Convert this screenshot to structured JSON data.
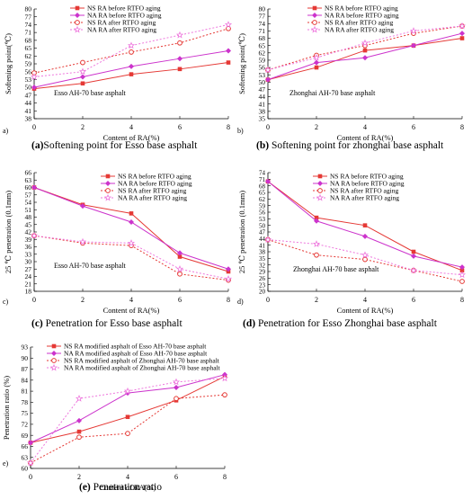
{
  "colors": {
    "red": "#e53935",
    "magenta": "#cc33cc",
    "pink": "#ee77dd"
  },
  "chart_data": [
    {
      "id": "a",
      "type": "line",
      "panel_letter": "a)",
      "caption_bold": "(a)",
      "caption_rest": "Softening point for Esso base asphalt",
      "annotation": "Esso AH-70 base asphalt",
      "xlabel": "Content of RA(%)",
      "ylabel": "Softening point(℃)",
      "x": [
        0,
        2,
        4,
        6,
        8
      ],
      "xlim": [
        0,
        8
      ],
      "ylim": [
        38,
        80
      ],
      "yticks": [
        38,
        41,
        44,
        47,
        50,
        53,
        56,
        59,
        62,
        65,
        68,
        71,
        74,
        77,
        80
      ],
      "series": [
        {
          "name": "NS RA  before RTFO aging",
          "color": "red",
          "dash": "solid",
          "marker": "square",
          "values": [
            49.5,
            51.5,
            55,
            57,
            59.5
          ]
        },
        {
          "name": "NA RA before RTFO aging",
          "color": "magenta",
          "dash": "solid",
          "marker": "diamond",
          "values": [
            50,
            54,
            58,
            61,
            64
          ]
        },
        {
          "name": "NS RA  after RTFO aging",
          "color": "red",
          "dash": "dotted",
          "marker": "circle",
          "values": [
            55.5,
            59.5,
            63.5,
            67,
            72.5
          ]
        },
        {
          "name": "NA RA  after RTFO aging",
          "color": "pink",
          "dash": "dotted",
          "marker": "star",
          "values": [
            54,
            56,
            66,
            70,
            74
          ]
        }
      ]
    },
    {
      "id": "b",
      "type": "line",
      "panel_letter": "b)",
      "caption_bold": "(b)",
      "caption_rest": " Softening point for zhonghai base asphalt",
      "annotation": "Zhonghai AH-70 base asphalt",
      "xlabel": "Content of RA(%)",
      "ylabel": "Softening point(℃)",
      "x": [
        0,
        2,
        4,
        6,
        8
      ],
      "xlim": [
        0,
        8
      ],
      "ylim": [
        35,
        80
      ],
      "yticks": [
        35,
        38,
        41,
        44,
        47,
        50,
        53,
        56,
        59,
        62,
        65,
        68,
        71,
        74,
        77,
        80
      ],
      "series": [
        {
          "name": "NS RA  before RTFO aging",
          "color": "red",
          "dash": "solid",
          "marker": "square",
          "values": [
            51,
            56,
            63,
            65,
            68
          ]
        },
        {
          "name": "NA RA before RTFO aging",
          "color": "magenta",
          "dash": "solid",
          "marker": "diamond",
          "values": [
            51,
            58,
            60,
            65,
            70
          ]
        },
        {
          "name": "NS RA  after RTFO aging",
          "color": "red",
          "dash": "dotted",
          "marker": "circle",
          "values": [
            55,
            61,
            65,
            70,
            73
          ]
        },
        {
          "name": "NA RA  after RTFO aging",
          "color": "pink",
          "dash": "dotted",
          "marker": "star",
          "values": [
            55,
            60,
            66,
            71,
            73
          ]
        }
      ]
    },
    {
      "id": "c",
      "type": "line",
      "panel_letter": "c)",
      "caption_bold": "(c)",
      "caption_rest": " Penetration for Esso base asphalt",
      "annotation": "Esso AH-70 base asphalt",
      "xlabel": "Content of RA(%)",
      "ylabel": "25 ℃ penetration (0.1mm)",
      "x": [
        0,
        2,
        4,
        6,
        8
      ],
      "xlim": [
        0,
        8
      ],
      "ylim": [
        18,
        66
      ],
      "yticks": [
        18,
        21,
        24,
        27,
        30,
        33,
        36,
        39,
        42,
        45,
        48,
        51,
        54,
        57,
        60,
        63,
        66
      ],
      "series": [
        {
          "name": "NS RA  before RTFO aging",
          "color": "red",
          "dash": "solid",
          "marker": "square",
          "values": [
            60,
            53,
            49.5,
            32,
            26
          ]
        },
        {
          "name": "NA RA before RTFO aging",
          "color": "magenta",
          "dash": "solid",
          "marker": "diamond",
          "values": [
            60,
            52.5,
            46,
            33.5,
            27
          ]
        },
        {
          "name": "NS RA  after RTFO aging",
          "color": "red",
          "dash": "dotted",
          "marker": "circle",
          "values": [
            40.5,
            37.5,
            36.5,
            25,
            22.5
          ]
        },
        {
          "name": "NA RA  after RTFO aging",
          "color": "pink",
          "dash": "dotted",
          "marker": "star",
          "values": [
            40.5,
            38,
            37.5,
            27,
            23
          ]
        }
      ]
    },
    {
      "id": "d",
      "type": "line",
      "panel_letter": "d)",
      "caption_bold": "(d)",
      "caption_rest": " Penetration for Esso Zhonghai base asphalt",
      "annotation": "Zhonghai AH-70 base asphalt",
      "xlabel": "Content of RA(%)",
      "ylabel": "25 ℃ penetration (0.1mm)",
      "x": [
        0,
        2,
        4,
        6,
        8
      ],
      "xlim": [
        0,
        8
      ],
      "ylim": [
        20,
        74
      ],
      "yticks": [
        20,
        23,
        26,
        29,
        32,
        35,
        38,
        41,
        44,
        47,
        50,
        53,
        56,
        59,
        62,
        65,
        68,
        71,
        74
      ],
      "series": [
        {
          "name": "NS RA  before RTFO aging",
          "color": "red",
          "dash": "solid",
          "marker": "square",
          "values": [
            70,
            53.5,
            50,
            38,
            29.5
          ]
        },
        {
          "name": "NA RA before RTFO aging",
          "color": "magenta",
          "dash": "solid",
          "marker": "diamond",
          "values": [
            70,
            52,
            45,
            36,
            31
          ]
        },
        {
          "name": "NS RA  after RTFO aging",
          "color": "red",
          "dash": "dotted",
          "marker": "circle",
          "values": [
            43.5,
            36.5,
            34.5,
            29.5,
            24.5
          ]
        },
        {
          "name": "NA RA  after RTFO aging",
          "color": "pink",
          "dash": "dotted",
          "marker": "star",
          "values": [
            43.5,
            41.5,
            36.5,
            29.5,
            27.5
          ]
        }
      ]
    },
    {
      "id": "e",
      "type": "line",
      "panel_letter": "e)",
      "caption_bold": "(e)",
      "caption_rest": " Penetration ratio",
      "annotation": "",
      "xlabel": "Content of RA(%)",
      "ylabel": "Penetration ratio (%)",
      "x": [
        0,
        2,
        4,
        6,
        8
      ],
      "xlim": [
        0,
        8
      ],
      "ylim": [
        60,
        93
      ],
      "yticks": [
        60,
        63,
        66,
        69,
        72,
        75,
        78,
        81,
        84,
        87,
        90,
        93
      ],
      "series": [
        {
          "name": "NS RA modified asphalt of Esso AH-70 base asphalt",
          "color": "red",
          "dash": "solid",
          "marker": "square",
          "values": [
            67,
            70,
            74,
            78.5,
            85
          ]
        },
        {
          "name": "NA RA modified asphalt of Esso AH-70  base asphalt",
          "color": "magenta",
          "dash": "solid",
          "marker": "diamond",
          "values": [
            67,
            73,
            80.5,
            82,
            85.5
          ]
        },
        {
          "name": "NS RA modified asphalt of Zhonghai AH-70  base asphalt",
          "color": "red",
          "dash": "dotted",
          "marker": "circle",
          "values": [
            61.5,
            68.5,
            69.5,
            79,
            80
          ]
        },
        {
          "name": "NA RA modified asphalt of Zhonghai AH-70  base asphalt",
          "color": "pink",
          "dash": "dotted",
          "marker": "star",
          "values": [
            61.5,
            79,
            81,
            83.5,
            84.5
          ]
        }
      ]
    }
  ]
}
